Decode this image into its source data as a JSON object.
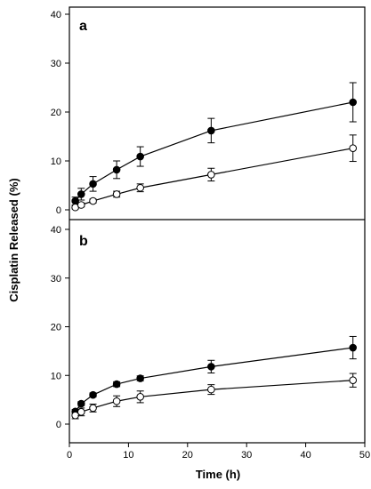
{
  "chart_data": {
    "type": "line",
    "ylabel": "Cisplatin Released (%)",
    "xlabel": "Time (h)",
    "xlim": [
      0,
      50
    ],
    "xticks": [
      0,
      10,
      20,
      30,
      40,
      50
    ],
    "panels": [
      {
        "label": "a",
        "ylim": [
          0,
          40
        ],
        "yticks": [
          0,
          10,
          20,
          30,
          40
        ],
        "x": [
          1,
          2,
          4,
          8,
          12,
          24,
          48
        ],
        "series": [
          {
            "marker": "filled-circle",
            "color": "#000000",
            "values": [
              1.8,
              3.2,
              5.3,
              8.2,
              10.9,
              16.2,
              22.0
            ],
            "errors": [
              0.8,
              1.2,
              1.5,
              1.8,
              2.0,
              2.5,
              4.0
            ]
          },
          {
            "marker": "open-circle",
            "color": "#000000",
            "values": [
              0.5,
              1.0,
              1.8,
              3.2,
              4.5,
              7.2,
              12.6
            ],
            "errors": [
              0.3,
              0.4,
              0.4,
              0.6,
              0.8,
              1.3,
              2.7
            ]
          }
        ]
      },
      {
        "label": "b",
        "ylim": [
          0,
          40
        ],
        "yticks": [
          0,
          10,
          20,
          30,
          40
        ],
        "x": [
          1,
          2,
          4,
          8,
          12,
          24,
          48
        ],
        "series": [
          {
            "marker": "filled-circle",
            "color": "#000000",
            "values": [
              2.6,
              4.2,
              6.0,
              8.2,
              9.4,
              11.8,
              15.7
            ],
            "errors": [
              0.4,
              0.4,
              0.4,
              0.5,
              0.5,
              1.3,
              2.3
            ]
          },
          {
            "marker": "open-circle",
            "color": "#000000",
            "values": [
              1.8,
              2.5,
              3.3,
              4.7,
              5.6,
              7.1,
              9.0
            ],
            "errors": [
              0.7,
              0.8,
              0.8,
              1.1,
              1.2,
              1.0,
              1.4
            ]
          }
        ]
      }
    ]
  }
}
